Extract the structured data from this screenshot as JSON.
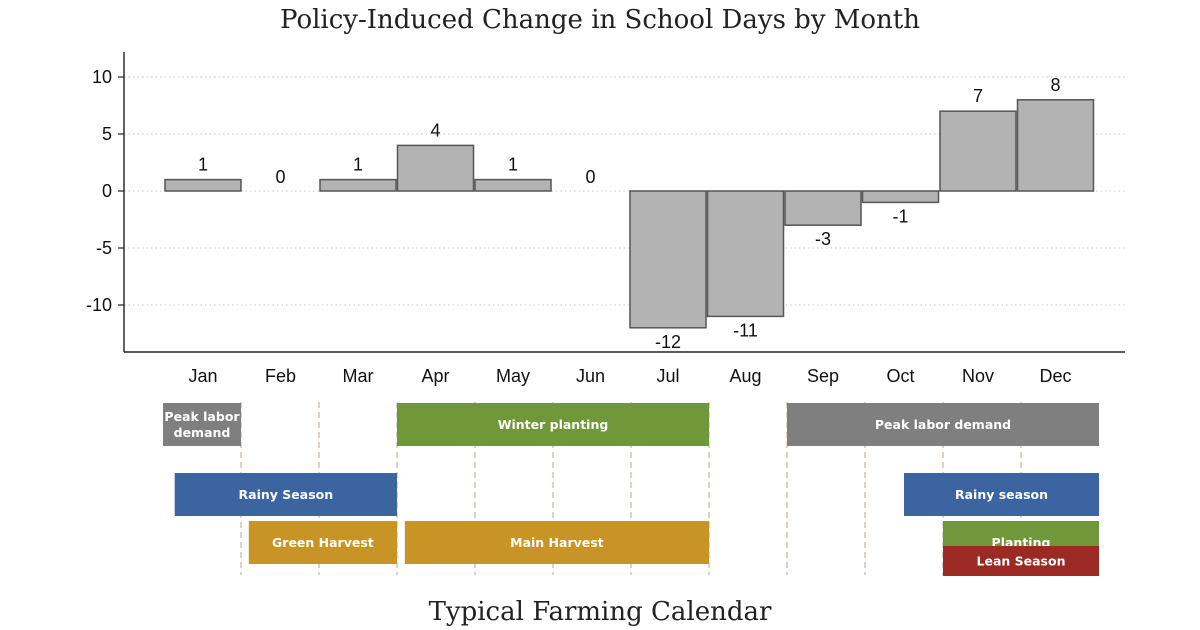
{
  "chart_data": {
    "type": "bar",
    "title": "Policy-Induced Change in School Days by Month",
    "categories": [
      "Jan",
      "Feb",
      "Mar",
      "Apr",
      "May",
      "Jun",
      "Jul",
      "Aug",
      "Sep",
      "Oct",
      "Nov",
      "Dec"
    ],
    "values": [
      1,
      0,
      1,
      4,
      1,
      0,
      -12,
      -11,
      -3,
      -1,
      7,
      8
    ],
    "data_labels": [
      "1",
      "0",
      "1",
      "4",
      "1",
      "0",
      "-12",
      "-11",
      "-3",
      "-1",
      "7",
      "8"
    ],
    "yticks": [
      10,
      5,
      0,
      -5,
      -10
    ],
    "ytick_labels": [
      "10",
      "5",
      "0",
      "-5",
      "-10"
    ],
    "ylim": [
      -14.3,
      12
    ],
    "xlabel": "",
    "ylabel": "",
    "grid": true,
    "bar_color": "#b3b3b3",
    "bar_edge_color": "#555555"
  },
  "calendar": {
    "title": "Typical Farming Calendar",
    "events": [
      {
        "label": "Peak labor|demand",
        "start": 0.0,
        "end": 1.0,
        "row": 0,
        "color": "#7f7f7f"
      },
      {
        "label": "Winter planting",
        "start": 3.0,
        "end": 7.0,
        "row": 0,
        "color": "#70973a"
      },
      {
        "label": "Peak labor demand",
        "start": 8.0,
        "end": 12.0,
        "row": 0,
        "color": "#7f7f7f"
      },
      {
        "label": "Rainy Season",
        "start": 0.15,
        "end": 3.0,
        "row": 1,
        "color": "#3c64a0"
      },
      {
        "label": "Rainy season",
        "start": 9.5,
        "end": 12.0,
        "row": 1,
        "color": "#3c64a0"
      },
      {
        "label": "Green Harvest",
        "start": 1.1,
        "end": 3.0,
        "row": 2,
        "color": "#c99426"
      },
      {
        "label": "Main Harvest",
        "start": 3.1,
        "end": 7.0,
        "row": 2,
        "color": "#c99426"
      },
      {
        "label": "Planting",
        "start": 10.0,
        "end": 12.0,
        "row": 2,
        "color": "#70973a"
      },
      {
        "label": "Lean Season",
        "start": 10.0,
        "end": 12.0,
        "row": 3,
        "color": "#9b2a25"
      }
    ]
  }
}
